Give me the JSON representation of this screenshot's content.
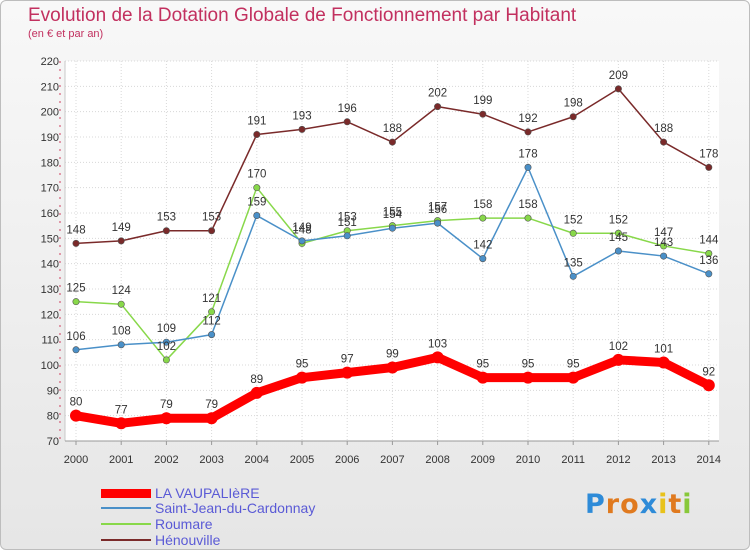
{
  "chart_data": {
    "type": "line",
    "title": "Evolution de la Dotation Globale de Fonctionnement par Habitant",
    "subtitle": "(en € et par an)",
    "categories": [
      "2000",
      "2001",
      "2002",
      "2003",
      "2004",
      "2005",
      "2006",
      "2007",
      "2008",
      "2009",
      "2010",
      "2011",
      "2012",
      "2013",
      "2014"
    ],
    "ylim": [
      70,
      220
    ],
    "yticks": [
      70,
      80,
      90,
      100,
      110,
      120,
      130,
      140,
      150,
      160,
      170,
      180,
      190,
      200,
      210,
      220
    ],
    "grid": true,
    "series": [
      {
        "name": "LA VAUPALIèRE",
        "color": "#ff0000",
        "values": [
          80,
          77,
          79,
          79,
          89,
          95,
          97,
          99,
          103,
          95,
          95,
          95,
          102,
          101,
          92
        ]
      },
      {
        "name": "Saint-Jean-du-Cardonnay",
        "color": "#4a90c8",
        "values": [
          106,
          108,
          109,
          112,
          159,
          149,
          151,
          154,
          156,
          142,
          178,
          135,
          145,
          143,
          136
        ]
      },
      {
        "name": "Roumare",
        "color": "#88d84a",
        "values": [
          125,
          124,
          102,
          121,
          170,
          148,
          153,
          155,
          157,
          158,
          158,
          152,
          152,
          147,
          144
        ]
      },
      {
        "name": "Hénouville",
        "color": "#7a2a2a",
        "values": [
          148,
          149,
          153,
          153,
          191,
          193,
          196,
          188,
          202,
          199,
          192,
          198,
          209,
          188,
          178
        ]
      }
    ]
  },
  "logo": {
    "text": "Proxiti",
    "letters": [
      "P",
      "r",
      "o",
      "x",
      "i",
      "t",
      "i"
    ],
    "colors": [
      "#2e8bd8",
      "#e07a1f",
      "#e07a1f",
      "#2e8bd8",
      "#e8c21a",
      "#e07a1f",
      "#88c83a"
    ]
  }
}
